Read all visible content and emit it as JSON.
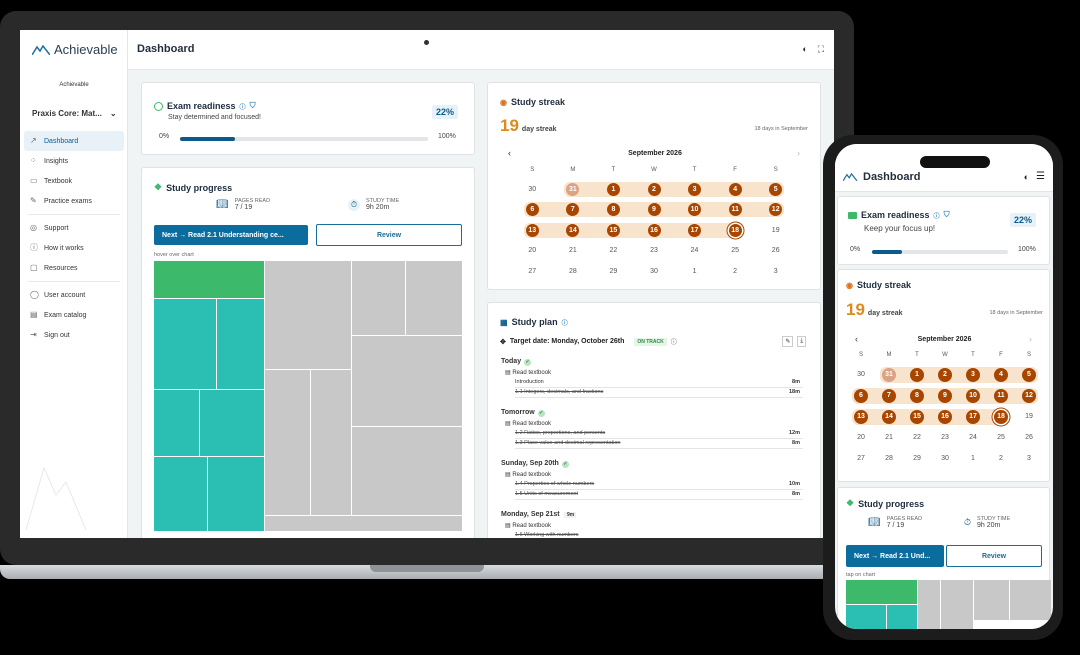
{
  "app": {
    "logo_text": "Achievable",
    "org_label": "Achievable",
    "course_selector": "Praxis Core: Mat..."
  },
  "colors": {
    "brand": "#0b5a8c",
    "streak": "#a84600",
    "green": "#3cb96b",
    "teal": "#2bbfb3",
    "gray": "#c8c8c8"
  },
  "sidebar": {
    "items": [
      {
        "label": "Dashboard",
        "icon": "chart-line-icon"
      },
      {
        "label": "Insights",
        "icon": "scatter-icon"
      },
      {
        "label": "Textbook",
        "icon": "book-icon"
      },
      {
        "label": "Practice exams",
        "icon": "pencil-icon"
      },
      {
        "label": "Support",
        "icon": "support-icon"
      },
      {
        "label": "How it works",
        "icon": "info-icon"
      },
      {
        "label": "Resources",
        "icon": "page-icon"
      },
      {
        "label": "User account",
        "icon": "user-icon"
      },
      {
        "label": "Exam catalog",
        "icon": "catalog-icon"
      },
      {
        "label": "Sign out",
        "icon": "sign-out-icon"
      }
    ]
  },
  "header": {
    "title": "Dashboard"
  },
  "readiness": {
    "title": "Exam readiness",
    "subtitle": "Stay determined and focused!",
    "percent": "22%",
    "progress": 0.22,
    "min_label": "0%",
    "max_label": "100%"
  },
  "streak": {
    "title": "Study streak",
    "days": "19",
    "days_label": "day streak",
    "month_note": "18 days in September",
    "month": "September 2026",
    "weekdays": [
      "S",
      "M",
      "T",
      "W",
      "T",
      "F",
      "S"
    ],
    "weeks": [
      [
        "30",
        "31",
        "1",
        "2",
        "3",
        "4",
        "5"
      ],
      [
        "6",
        "7",
        "8",
        "9",
        "10",
        "11",
        "12"
      ],
      [
        "13",
        "14",
        "15",
        "16",
        "17",
        "18",
        "19"
      ],
      [
        "20",
        "21",
        "22",
        "23",
        "24",
        "25",
        "26"
      ],
      [
        "27",
        "28",
        "29",
        "30",
        "1",
        "2",
        "3"
      ]
    ]
  },
  "progress": {
    "title": "Study progress",
    "pages_label": "PAGES READ",
    "pages_value": "7 / 19",
    "time_label": "STUDY TIME",
    "time_value": "9h 20m",
    "next_button": "Next → Read 2.1 Understanding ce...",
    "review_button": "Review",
    "hint": "hover over chart"
  },
  "plan": {
    "title": "Study plan",
    "target": "Target date: Monday, October 26th",
    "status": "ON TRACK",
    "days": [
      {
        "label": "Today",
        "task": "Read textbook",
        "items": [
          {
            "name": "Introduction",
            "time": "8m",
            "done": false
          },
          {
            "name": "1.1 Integers, decimals, and fractions",
            "time": "18m",
            "done": true
          }
        ]
      },
      {
        "label": "Tomorrow",
        "task": "Read textbook",
        "items": [
          {
            "name": "1.2 Ratios, proportions, and percents",
            "time": "12m",
            "done": true
          },
          {
            "name": "1.3 Place value and decimal representation",
            "time": "8m",
            "done": true
          }
        ]
      },
      {
        "label": "Sunday, Sep 20th",
        "task": "Read textbook",
        "items": [
          {
            "name": "1.4 Properties of whole numbers",
            "time": "10m",
            "done": true
          },
          {
            "name": "1.5 Units of measurement",
            "time": "8m",
            "done": true
          }
        ]
      },
      {
        "label": "Monday, Sep 21st",
        "badge": "9m",
        "task": "Read textbook",
        "items": [
          {
            "name": "1.6 Working with numbers",
            "time": "",
            "done": true
          }
        ]
      }
    ]
  },
  "mobile": {
    "title": "Dashboard",
    "readiness_subtitle": "Keep your focus up!",
    "next_button": "Next → Read 2.1 Und...",
    "hint": "tap on chart"
  }
}
